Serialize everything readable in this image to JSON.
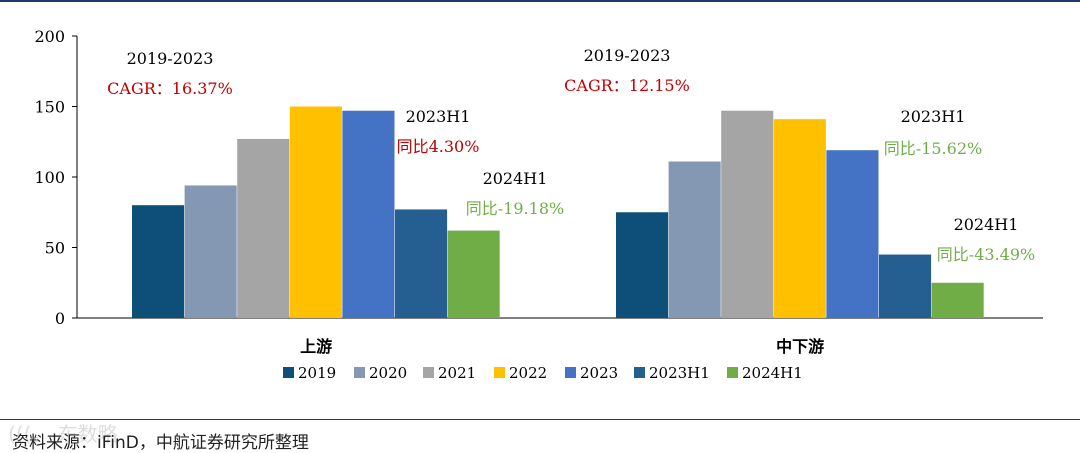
{
  "chart_data": {
    "type": "bar",
    "categories": [
      "上游",
      "中下游"
    ],
    "series": [
      {
        "name": "2019",
        "values": [
          80,
          75
        ]
      },
      {
        "name": "2020",
        "values": [
          94,
          111
        ]
      },
      {
        "name": "2021",
        "values": [
          127,
          147
        ]
      },
      {
        "name": "2022",
        "values": [
          150,
          141
        ]
      },
      {
        "name": "2023",
        "values": [
          147,
          119
        ]
      },
      {
        "name": "2023H1",
        "values": [
          77,
          45
        ]
      },
      {
        "name": "2024H1",
        "values": [
          62,
          25
        ]
      }
    ],
    "ylim": [
      0,
      200
    ],
    "yticks": [
      "0",
      "50",
      "100",
      "150",
      "200"
    ],
    "title": "",
    "xlabel": "",
    "ylabel": "",
    "legend_position": "bottom-center",
    "annotations": [
      {
        "group": 0,
        "cagr_period": "2019-2023",
        "cagr": "CAGR：16.37%",
        "h1_2023_label": "2023H1",
        "h1_2023_yoy": "同比4.30%",
        "h1_2024_label": "2024H1",
        "h1_2024_yoy": "同比-19.18%"
      },
      {
        "group": 1,
        "cagr_period": "2019-2023",
        "cagr": "CAGR：12.15%",
        "h1_2023_label": "2023H1",
        "h1_2023_yoy": "同比-15.62%",
        "h1_2024_label": "2024H1",
        "h1_2024_yoy": "同比-43.49%"
      }
    ]
  },
  "colors": {
    "series": [
      "#0d4f78",
      "#8498b4",
      "#a5a5a5",
      "#ffc000",
      "#4472c4",
      "#255e91",
      "#70ad47"
    ],
    "red_annotation": "#c00000",
    "green_annotation": "#70ad47",
    "axis": "#000000"
  },
  "source": "资料来源：iFinD，中航证券研究所整理",
  "watermark": "(((。 东数略"
}
